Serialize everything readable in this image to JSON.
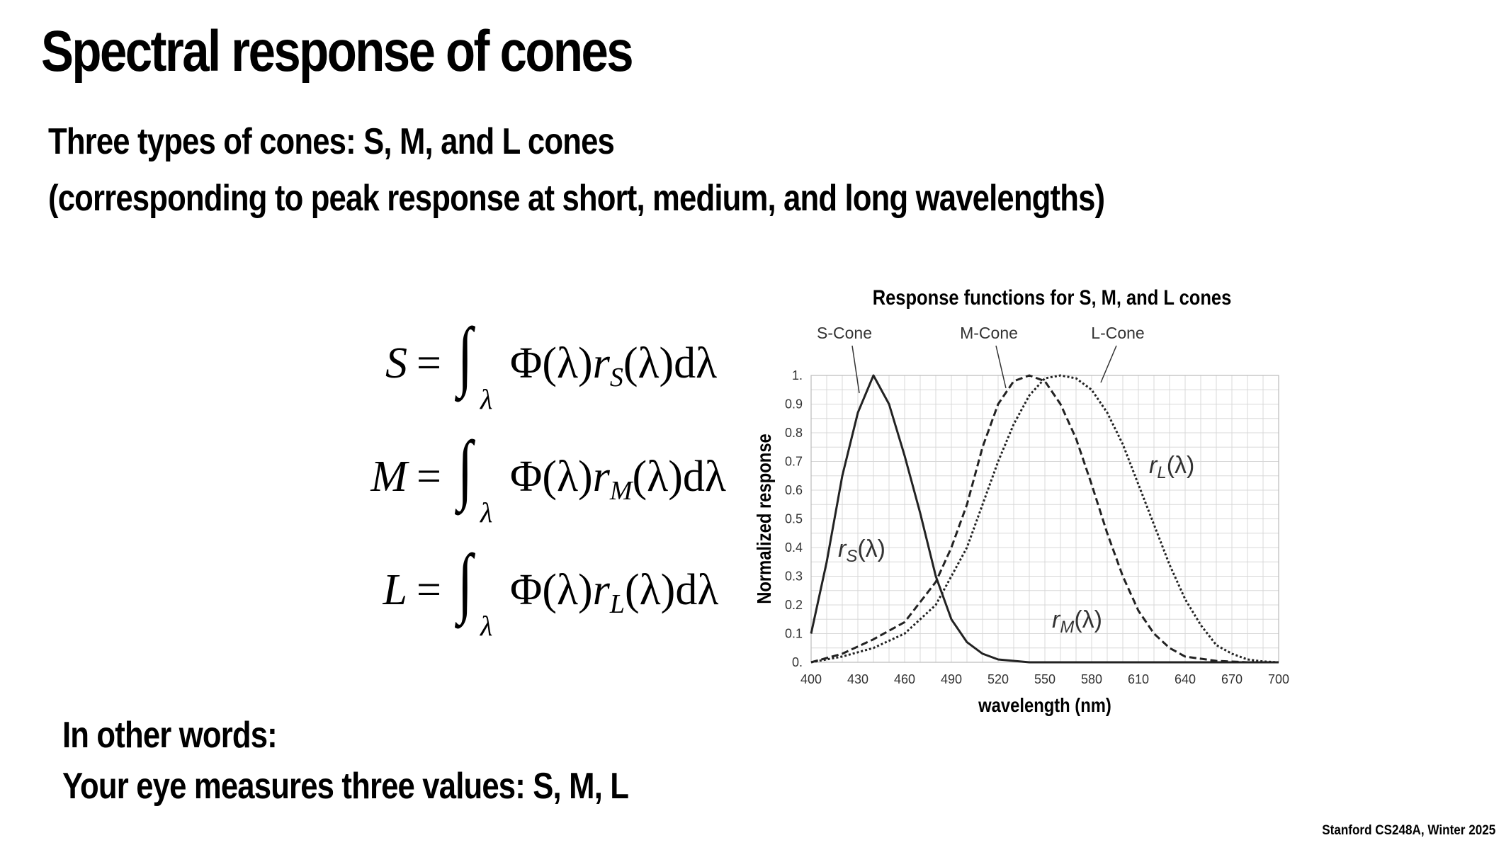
{
  "slide": {
    "title": "Spectral response of cones",
    "line1": "Three types of cones: S, M, and L cones",
    "line2": "(corresponding to peak response at short, medium, and long wavelengths)",
    "bottom1": "In other words:",
    "bottom2": "Your eye measures three values: S, M, L",
    "footer": "Stanford CS248A, Winter 2025"
  },
  "equations": [
    {
      "lhs": "S",
      "subscript": "S"
    },
    {
      "lhs": "M",
      "subscript": "M"
    },
    {
      "lhs": "L",
      "subscript": "L"
    }
  ],
  "equation_parts": {
    "equals": "=",
    "integral": "∫",
    "limit": "λ",
    "phi": "Φ(λ)",
    "r": "r",
    "tail": "(λ)dλ"
  },
  "chart_data": {
    "type": "line",
    "title": "Response functions for S, M, and L cones",
    "xlabel": "wavelength (nm)",
    "ylabel": "Normalized response",
    "xlim": [
      400,
      700
    ],
    "ylim": [
      0,
      1
    ],
    "x_ticks": [
      400,
      430,
      460,
      490,
      520,
      550,
      580,
      610,
      640,
      670,
      700
    ],
    "y_tick_labels": [
      "0.",
      "0.1",
      "0.2",
      "0.3",
      "0.4",
      "0.5",
      "0.6",
      "0.7",
      "0.8",
      "0.9",
      "1."
    ],
    "y_ticks": [
      0,
      0.1,
      0.2,
      0.3,
      0.4,
      0.5,
      0.6,
      0.7,
      0.8,
      0.9,
      1.0
    ],
    "grid": true,
    "series": [
      {
        "name": "S-Cone",
        "curve_label": "r_S(λ)",
        "style": "solid",
        "x": [
          400,
          410,
          420,
          430,
          440,
          450,
          460,
          470,
          480,
          490,
          500,
          510,
          520,
          530,
          540,
          550,
          560,
          580,
          600,
          650,
          700
        ],
        "y": [
          0.1,
          0.35,
          0.65,
          0.87,
          1.0,
          0.9,
          0.72,
          0.52,
          0.3,
          0.15,
          0.07,
          0.03,
          0.01,
          0.005,
          0,
          0,
          0,
          0,
          0,
          0,
          0
        ]
      },
      {
        "name": "M-Cone",
        "curve_label": "r_M(λ)",
        "style": "dashed",
        "x": [
          400,
          420,
          440,
          460,
          480,
          490,
          500,
          510,
          520,
          530,
          540,
          550,
          560,
          570,
          580,
          590,
          600,
          610,
          620,
          630,
          640,
          660,
          680,
          700
        ],
        "y": [
          0.0,
          0.03,
          0.08,
          0.14,
          0.28,
          0.4,
          0.55,
          0.75,
          0.9,
          0.98,
          1.0,
          0.98,
          0.9,
          0.78,
          0.62,
          0.45,
          0.3,
          0.18,
          0.1,
          0.05,
          0.02,
          0.005,
          0,
          0
        ]
      },
      {
        "name": "L-Cone",
        "curve_label": "r_L(λ)",
        "style": "dotted",
        "x": [
          400,
          420,
          440,
          460,
          480,
          490,
          500,
          510,
          520,
          530,
          540,
          550,
          560,
          570,
          580,
          590,
          600,
          610,
          620,
          630,
          640,
          650,
          660,
          670,
          680,
          690,
          700
        ],
        "y": [
          0.0,
          0.02,
          0.05,
          0.1,
          0.2,
          0.3,
          0.4,
          0.55,
          0.7,
          0.83,
          0.93,
          0.99,
          1.0,
          0.99,
          0.95,
          0.87,
          0.76,
          0.62,
          0.48,
          0.34,
          0.22,
          0.13,
          0.06,
          0.03,
          0.01,
          0.003,
          0
        ]
      }
    ]
  }
}
